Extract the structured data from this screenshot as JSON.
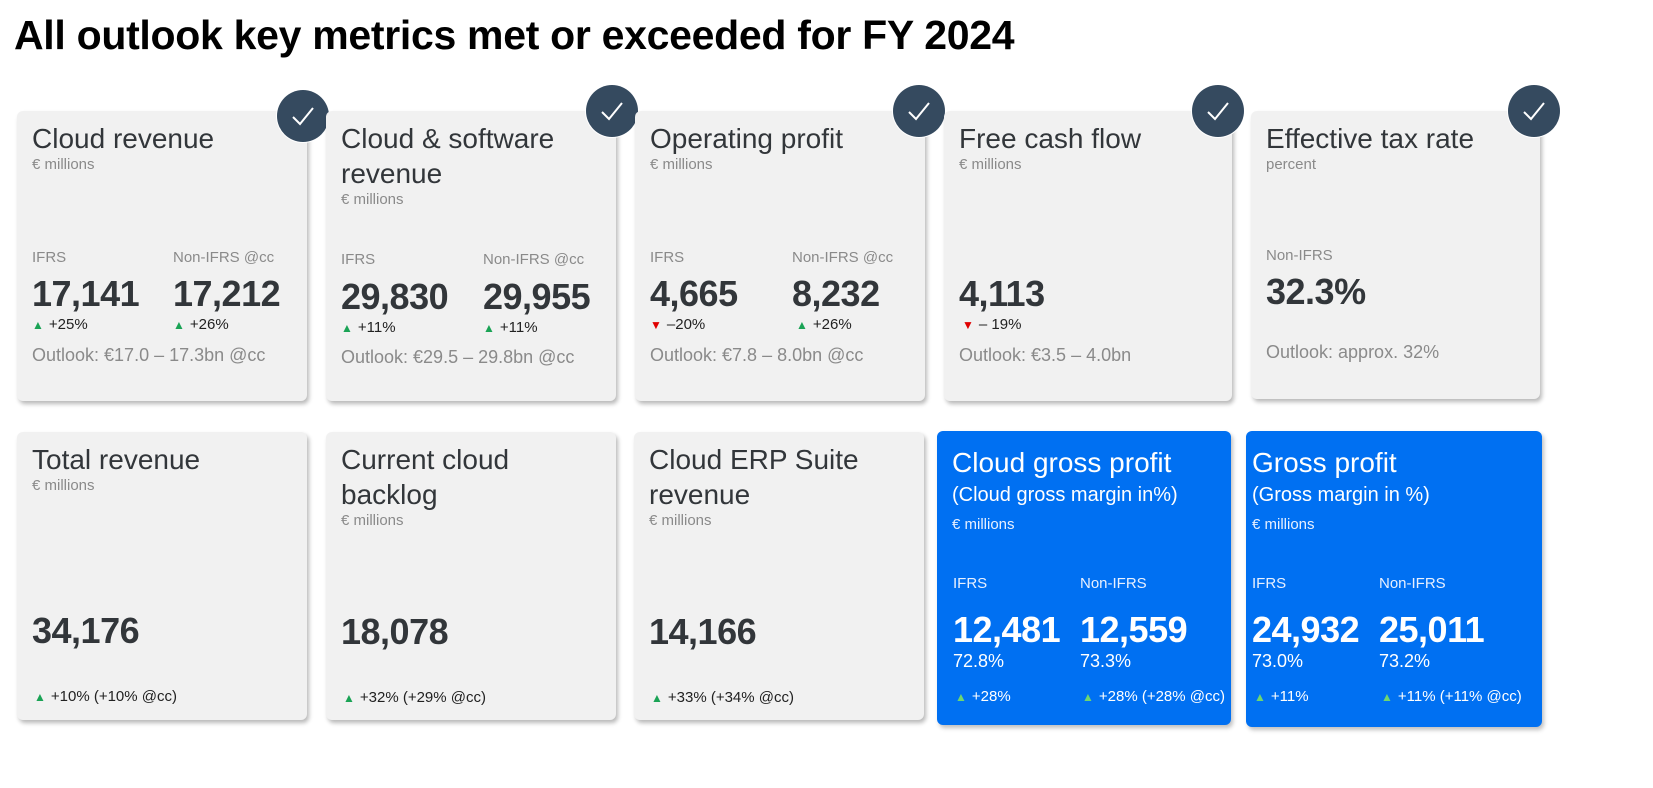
{
  "title": "All outlook key metrics met or exceeded for FY 2024",
  "colors": {
    "card_gray": "#f1f1f1",
    "card_blue": "#0070f2",
    "check_badge": "#354a5f",
    "up_arrow": "#1aa355",
    "down_arrow": "#e00000"
  },
  "icons": {
    "check": "checkmark-icon",
    "up": "triangle-up-icon",
    "down": "triangle-down-icon"
  },
  "cards": [
    {
      "title": "Cloud revenue",
      "unit": "€ millions",
      "label1": "IFRS",
      "value1": "17,141",
      "change1": "+25%",
      "label2": "Non-IFRS @cc",
      "value2": "17,212",
      "change2": "+26%",
      "outlook": "Outlook: €17.0 – 17.3bn @cc"
    },
    {
      "title": "Cloud & software revenue",
      "unit": "€ millions",
      "label1": "IFRS",
      "value1": "29,830",
      "change1": "+11%",
      "label2": "Non-IFRS @cc",
      "value2": "29,955",
      "change2": "+11%",
      "outlook": "Outlook: €29.5 – 29.8bn @cc"
    },
    {
      "title": "Operating profit",
      "unit": "€ millions",
      "label1": "IFRS",
      "value1": "4,665",
      "change1": "–20%",
      "label2": "Non-IFRS @cc",
      "value2": "8,232",
      "change2": "+26%",
      "outlook": "Outlook: €7.8 – 8.0bn @cc"
    },
    {
      "title": "Free cash flow",
      "unit": "€ millions",
      "value1": "4,113",
      "change1": "– 19%",
      "outlook": "Outlook:  €3.5 – 4.0bn"
    },
    {
      "title": "Effective tax rate",
      "unit": "percent",
      "label1": "Non-IFRS",
      "value1": "32.3%",
      "outlook": "Outlook: approx. 32%"
    },
    {
      "title": "Total revenue",
      "unit": "€ millions",
      "value1": "34,176",
      "change1": "+10% (+10% @cc)"
    },
    {
      "title": "Current cloud backlog",
      "unit": "€ millions",
      "value1": "18,078",
      "change1": "+32% (+29% @cc)"
    },
    {
      "title": "Cloud ERP Suite revenue",
      "unit": "€ millions",
      "value1": "14,166",
      "change1": "+33% (+34% @cc)"
    },
    {
      "title": "Cloud gross profit",
      "subtitle": "(Cloud gross margin in%)",
      "unit": "€ millions",
      "label1": "IFRS",
      "value1": "12,481",
      "margin1": "72.8%",
      "change1": "+28%",
      "label2": "Non-IFRS",
      "value2": "12,559",
      "margin2": "73.3%",
      "change2": "+28% (+28% @cc)"
    },
    {
      "title": "Gross profit",
      "subtitle": "(Gross margin in %)",
      "unit": "€ millions",
      "label1": "IFRS",
      "value1": "24,932",
      "margin1": "73.0%",
      "change1": "+11%",
      "label2": "Non-IFRS",
      "value2": "25,011",
      "margin2": "73.2%",
      "change2": "+11% (+11% @cc)"
    }
  ]
}
